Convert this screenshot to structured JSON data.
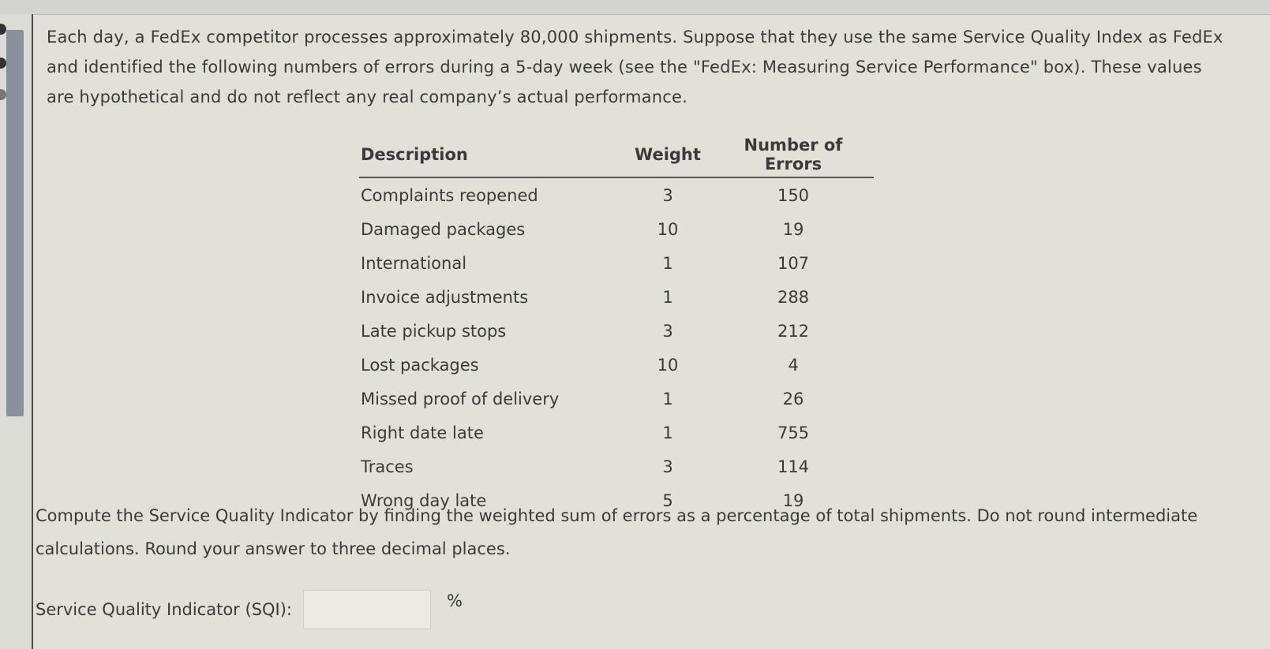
{
  "intro": "Each day, a FedEx competitor processes approximately 80,000 shipments. Suppose that they use the same Service Quality Index as FedEx and identified the following numbers of errors during a 5-day week (see the \"FedEx: Measuring Service Performance\" box). These values are hypothetical and do not reflect any real company’s actual performance.",
  "table": {
    "headers": [
      "Description",
      "Weight",
      "Number of Errors"
    ],
    "rows": [
      {
        "description": "Complaints reopened",
        "weight": "3",
        "errors": "150"
      },
      {
        "description": "Damaged packages",
        "weight": "10",
        "errors": "19"
      },
      {
        "description": "International",
        "weight": "1",
        "errors": "107"
      },
      {
        "description": "Invoice adjustments",
        "weight": "1",
        "errors": "288"
      },
      {
        "description": "Late pickup stops",
        "weight": "3",
        "errors": "212"
      },
      {
        "description": "Lost packages",
        "weight": "10",
        "errors": "4"
      },
      {
        "description": "Missed proof of delivery",
        "weight": "1",
        "errors": "26"
      },
      {
        "description": "Right date late",
        "weight": "1",
        "errors": "755"
      },
      {
        "description": "Traces",
        "weight": "3",
        "errors": "114"
      },
      {
        "description": "Wrong day late",
        "weight": "5",
        "errors": "19"
      }
    ]
  },
  "question": "Compute the Service Quality Indicator by finding the weighted sum of errors as a percentage of total shipments. Do not round intermediate calculations. Round your answer to three decimal places.",
  "answer": {
    "label": "Service Quality Indicator (SQI):",
    "value": "",
    "unit": "%"
  }
}
